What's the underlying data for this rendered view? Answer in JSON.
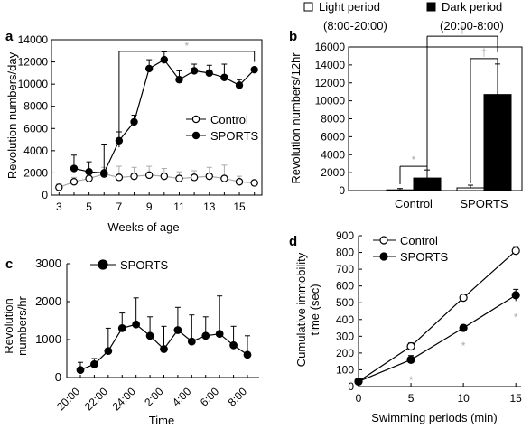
{
  "colors": {
    "ink": "#000000",
    "grid_gray": "#aaaaaa",
    "open_fill": "#ffffff",
    "solid_fill": "#000000"
  },
  "chart_data": [
    {
      "panel": "a",
      "type": "line",
      "xlabel": "Weeks of age",
      "ylabel": "Revolution numbers/day",
      "xlim": [
        2.5,
        16.5
      ],
      "ylim": [
        0,
        14000
      ],
      "xticks": [
        3,
        5,
        7,
        9,
        11,
        13,
        15
      ],
      "yticks": [
        0,
        2000,
        4000,
        6000,
        8000,
        10000,
        12000,
        14000
      ],
      "legend": "center-right",
      "series": [
        {
          "name": "Control",
          "marker": "open-circle",
          "x": [
            3,
            4,
            5,
            6,
            7,
            8,
            9,
            10,
            11,
            12,
            13,
            14,
            15,
            16
          ],
          "values": [
            700,
            1200,
            1500,
            1900,
            1600,
            1700,
            1800,
            1700,
            1500,
            1600,
            1700,
            1500,
            1200,
            1100
          ],
          "err": [
            300,
            400,
            500,
            600,
            1000,
            800,
            800,
            700,
            600,
            600,
            800,
            1200,
            500,
            200
          ]
        },
        {
          "name": "SPORTS",
          "marker": "filled-circle",
          "x": [
            4,
            5,
            6,
            7,
            8,
            9,
            10,
            11,
            12,
            13,
            14,
            15,
            16
          ],
          "values": [
            2400,
            2100,
            2000,
            4900,
            6600,
            11400,
            12200,
            10400,
            11200,
            11000,
            10600,
            9900,
            11300
          ],
          "err": [
            1200,
            900,
            2600,
            800,
            600,
            800,
            700,
            800,
            600,
            700,
            1200,
            500,
            200
          ]
        }
      ],
      "annotations": [
        {
          "text": "*",
          "from_x": 7,
          "to_x": 16
        }
      ]
    },
    {
      "panel": "b",
      "type": "bar",
      "ylabel": "Revolution numbers/12hr",
      "ylim": [
        0,
        16000
      ],
      "yticks": [
        0,
        2000,
        4000,
        6000,
        8000,
        10000,
        12000,
        14000,
        16000
      ],
      "categories": [
        "Control",
        "SPORTS"
      ],
      "legend": "top",
      "series": [
        {
          "name": "Light period",
          "name2": "(8:00-20:00)",
          "fill": "open",
          "values": [
            80,
            300
          ],
          "err": [
            150,
            300
          ]
        },
        {
          "name": "Dark period",
          "name2": "(20:00-8:00)",
          "fill": "solid",
          "values": [
            1400,
            10700
          ],
          "err": [
            900,
            3400
          ]
        }
      ],
      "annotations": [
        "*",
        "†",
        "†"
      ]
    },
    {
      "panel": "c",
      "type": "line",
      "xlabel": "Time",
      "ylabel": "Revolution",
      "ylabel2": "numbers/hr",
      "ylim": [
        0,
        3000
      ],
      "yticks": [
        0,
        1000,
        2000,
        3000
      ],
      "categories": [
        "20:00",
        "21:00",
        "22:00",
        "23:00",
        "24:00",
        "1:00",
        "2:00",
        "3:00",
        "4:00",
        "5:00",
        "6:00",
        "7:00",
        "8:00"
      ],
      "xticklabels": [
        "20:00",
        "22:00",
        "24:00",
        "2:00",
        "4:00",
        "6:00",
        "8:00"
      ],
      "legend": "top-left",
      "series": [
        {
          "name": "SPORTS",
          "marker": "filled-circle",
          "values": [
            200,
            350,
            700,
            1300,
            1400,
            1100,
            750,
            1250,
            950,
            1100,
            1150,
            850,
            600
          ],
          "err": [
            200,
            150,
            600,
            400,
            700,
            500,
            600,
            600,
            700,
            500,
            1000,
            500,
            500
          ]
        }
      ]
    },
    {
      "panel": "d",
      "type": "line",
      "xlabel": "Swimming periods (min)",
      "ylabel": "Cumulative immobility",
      "ylabel2": "time (sec)",
      "xlim": [
        0,
        15.5
      ],
      "ylim": [
        0,
        900
      ],
      "xticks": [
        0,
        5,
        10,
        15
      ],
      "yticks": [
        0,
        100,
        200,
        300,
        400,
        500,
        600,
        700,
        800,
        900
      ],
      "legend": "top-left",
      "series": [
        {
          "name": "Control",
          "marker": "open-circle",
          "x": [
            0,
            5,
            10,
            15
          ],
          "values": [
            30,
            240,
            530,
            810
          ],
          "err": [
            5,
            20,
            20,
            25
          ]
        },
        {
          "name": "SPORTS",
          "marker": "filled-circle",
          "x": [
            0,
            5,
            10,
            15
          ],
          "values": [
            30,
            160,
            350,
            545
          ],
          "err": [
            5,
            25,
            10,
            35
          ]
        }
      ],
      "annotations": [
        "*",
        "*",
        "*"
      ]
    }
  ],
  "panel_letters": [
    "a",
    "b",
    "c",
    "d"
  ]
}
